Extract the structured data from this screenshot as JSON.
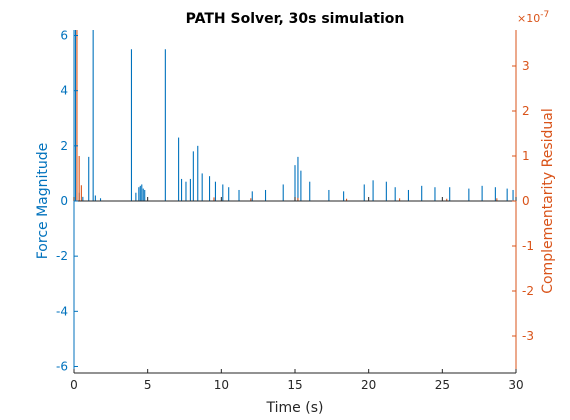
{
  "chart_data": {
    "type": "line",
    "title": "PATH Solver, 30s simulation",
    "xlabel": "Time (s)",
    "xlim": [
      0,
      30
    ],
    "x_ticks": [
      0,
      5,
      10,
      15,
      20,
      25,
      30
    ],
    "left_axis": {
      "label": "Force Magnitude",
      "ylim": [
        -6.2,
        6.2
      ],
      "ticks": [
        -6,
        -4,
        -2,
        0,
        2,
        4,
        6
      ],
      "color": "#0072BD"
    },
    "right_axis": {
      "label": "Complementarity Residual",
      "exponent_label": "×10",
      "exponent_power": "-7",
      "ylim": [
        -3.8,
        3.8
      ],
      "ticks": [
        -3,
        -2,
        -1,
        0,
        1,
        2,
        3
      ],
      "color": "#D95319"
    },
    "series": [
      {
        "axis": "left",
        "color": "#0072BD",
        "spikes": [
          [
            0.1,
            6.2
          ],
          [
            0.35,
            0.3
          ],
          [
            0.6,
            0.15
          ],
          [
            1.0,
            1.6
          ],
          [
            1.3,
            6.2
          ],
          [
            1.45,
            0.2
          ],
          [
            1.8,
            0.1
          ],
          [
            3.9,
            5.5
          ],
          [
            4.2,
            0.3
          ],
          [
            4.4,
            0.5
          ],
          [
            4.5,
            0.55
          ],
          [
            4.6,
            0.6
          ],
          [
            4.7,
            0.45
          ],
          [
            4.8,
            0.4
          ],
          [
            6.2,
            5.5
          ],
          [
            7.1,
            2.3
          ],
          [
            7.3,
            0.8
          ],
          [
            7.6,
            0.7
          ],
          [
            7.9,
            0.8
          ],
          [
            8.1,
            1.8
          ],
          [
            8.4,
            2.0
          ],
          [
            8.7,
            1.0
          ],
          [
            9.2,
            0.9
          ],
          [
            9.6,
            0.7
          ],
          [
            10.1,
            0.6
          ],
          [
            10.5,
            0.5
          ],
          [
            11.2,
            0.4
          ],
          [
            12.1,
            0.35
          ],
          [
            13.0,
            0.4
          ],
          [
            14.2,
            0.6
          ],
          [
            15.0,
            1.3
          ],
          [
            15.2,
            1.6
          ],
          [
            15.4,
            1.1
          ],
          [
            16.0,
            0.7
          ],
          [
            17.3,
            0.4
          ],
          [
            18.3,
            0.35
          ],
          [
            19.7,
            0.6
          ],
          [
            20.3,
            0.75
          ],
          [
            21.2,
            0.7
          ],
          [
            21.8,
            0.5
          ],
          [
            22.7,
            0.4
          ],
          [
            23.6,
            0.55
          ],
          [
            24.5,
            0.5
          ],
          [
            25.5,
            0.5
          ],
          [
            26.8,
            0.45
          ],
          [
            27.7,
            0.55
          ],
          [
            28.6,
            0.5
          ],
          [
            29.4,
            0.45
          ],
          [
            29.8,
            0.4
          ]
        ]
      },
      {
        "axis": "right",
        "color": "#D95319",
        "spikes": [
          [
            0.2,
            3.8
          ],
          [
            0.35,
            1.0
          ],
          [
            0.5,
            0.35
          ],
          [
            9.5,
            0.08
          ],
          [
            12.0,
            0.06
          ],
          [
            15.2,
            0.07
          ],
          [
            18.5,
            0.05
          ],
          [
            22.1,
            0.06
          ],
          [
            25.3,
            0.05
          ],
          [
            28.7,
            0.06
          ]
        ]
      }
    ]
  }
}
